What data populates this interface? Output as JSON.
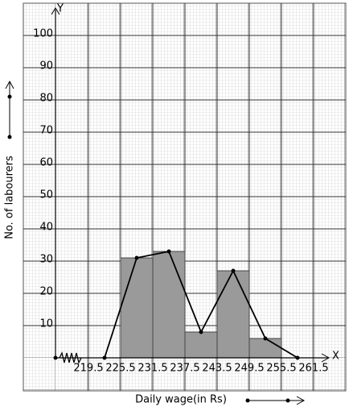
{
  "chart_data": {
    "type": "histogram",
    "x_label": "Daily wage(in Rs)",
    "y_label": "No. of labourers",
    "x_axis_name": "X",
    "y_axis_name": "Y",
    "bins": [
      225.5,
      231.5,
      237.5,
      243.5,
      249.5,
      255.5
    ],
    "counts": [
      31,
      33,
      8,
      27,
      6
    ],
    "color": "#9a9a9a",
    "polygon": {
      "x": [
        222.5,
        228.5,
        234.5,
        240.5,
        246.5,
        252.5,
        258.5
      ],
      "values": [
        0,
        31,
        33,
        8,
        27,
        6,
        0
      ],
      "color": "#000000"
    },
    "xlim": [
      213.5,
      264.5
    ],
    "ylim": [
      0,
      108
    ],
    "xticks": [
      219.5,
      225.5,
      231.5,
      237.5,
      243.5,
      249.5,
      255.5,
      261.5
    ],
    "yticks": [
      10,
      20,
      30,
      40,
      50,
      60,
      70,
      80,
      90,
      100
    ],
    "grid": true
  }
}
